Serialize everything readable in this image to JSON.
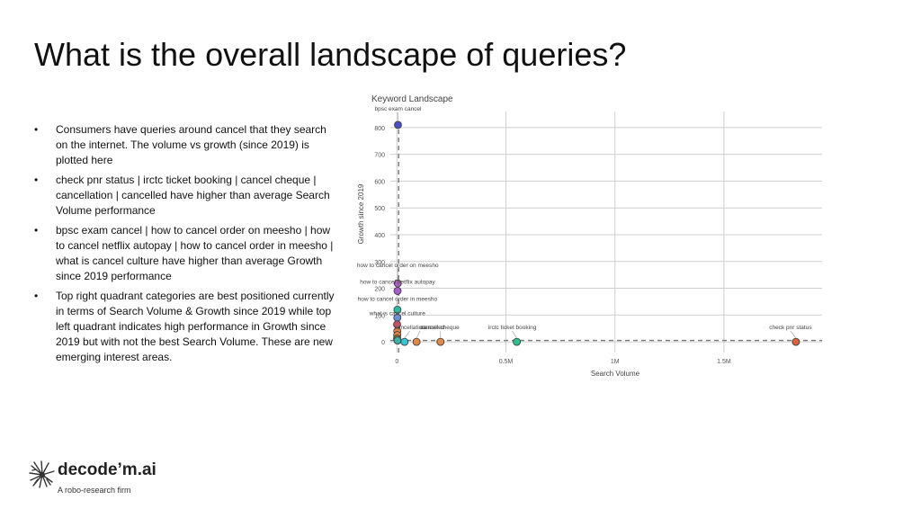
{
  "slide": {
    "title": "What is the overall landscape of queries?",
    "bullets": [
      "Consumers have queries around cancel that they search on the internet. The volume vs growth (since 2019) is plotted here",
      "check pnr status | irctc ticket booking | cancel cheque | cancellation | cancelled have higher than average Search Volume performance",
      "bpsc exam cancel | how to cancel order on meesho | how to cancel netflix autopay | how to cancel order in meesho | what is cancel culture have higher than average Growth since 2019 performance",
      "Top right quadrant categories are best positioned currently in terms of Search Volume & Growth since 2019 while top left quadrant indicates high performance in Growth since 2019 but with not the best Search Volume. These are new emerging interest areas."
    ],
    "bullet_symbol": "•"
  },
  "logo": {
    "name": "decode’m.ai",
    "tagline": "A robo-research firm"
  },
  "chart_data": {
    "type": "scatter",
    "title": "Keyword Landscape",
    "xlabel": "Search Volume",
    "ylabel": "Growth since 2019",
    "xlim": [
      -30000,
      1950000
    ],
    "ylim": [
      -40,
      860
    ],
    "x_ticks": [
      0,
      500000,
      1000000,
      1500000
    ],
    "x_tick_labels": [
      "0",
      "0.5M",
      "1M",
      "1.5M"
    ],
    "y_ticks": [
      0,
      100,
      200,
      300,
      400,
      500,
      600,
      700,
      800
    ],
    "y_tick_labels": [
      "0",
      "100",
      "200",
      "300",
      "400",
      "500",
      "600",
      "700",
      "800"
    ],
    "grid": true,
    "mean_lines": {
      "x": 8000,
      "y": 5
    },
    "points": [
      {
        "label": "bpsc exam cancel",
        "x": 5000,
        "y": 810,
        "color": "#4a4fc4"
      },
      {
        "label": "how to cancel order on meesho",
        "x": 4000,
        "y": 218,
        "color": "#a75ccc"
      },
      {
        "label": "how to cancel netflix autopay",
        "x": 3000,
        "y": 190,
        "color": "#a75ccc"
      },
      {
        "label": "how to cancel order in meesho",
        "x": 2500,
        "y": 120,
        "color": "#2fb8a0"
      },
      {
        "label": "what is cancel culture",
        "x": 2000,
        "y": 90,
        "color": "#6b8fd6"
      },
      {
        "label": "",
        "x": 1000,
        "y": 65,
        "color": "#c2536b"
      },
      {
        "label": "",
        "x": 2000,
        "y": 40,
        "color": "#d9824a"
      },
      {
        "label": "",
        "x": 1500,
        "y": 25,
        "color": "#d9824a"
      },
      {
        "label": "",
        "x": 1200,
        "y": 12,
        "color": "#8c6d3a"
      },
      {
        "label": "",
        "x": 3000,
        "y": 5,
        "color": "#3bb3a5"
      },
      {
        "label": "cancellation",
        "x": 35000,
        "y": 0,
        "color": "#3bc3d8"
      },
      {
        "label": "cancelled",
        "x": 90000,
        "y": 0,
        "color": "#e08a4a"
      },
      {
        "label": "cancel cheque",
        "x": 200000,
        "y": 0,
        "color": "#e08a4a"
      },
      {
        "label": "irctc ticket booking",
        "x": 550000,
        "y": 0,
        "color": "#2fbf8f"
      },
      {
        "label": "check pnr status",
        "x": 1830000,
        "y": 0,
        "color": "#e0623c"
      }
    ]
  }
}
